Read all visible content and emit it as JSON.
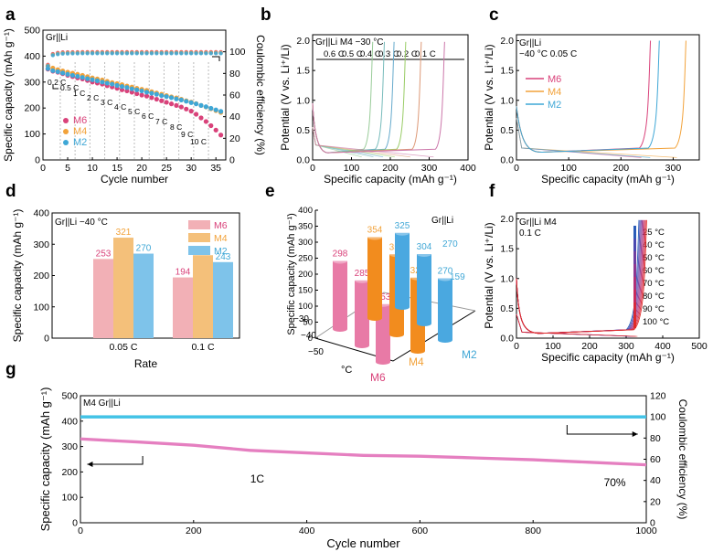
{
  "colors": {
    "M6": "#d9427a",
    "M4": "#f2a23a",
    "M2": "#3fa7d6",
    "pinkbar": "#f2b0b6",
    "orangebar": "#f4c07a",
    "bluebar": "#7ec3ea",
    "cyl_pink": "#e87aa6",
    "cyl_orange": "#f28c1e",
    "cyl_blue": "#4aa8e0",
    "long_ce": "#43c3e6",
    "long_cap": "#e57fc0"
  },
  "chart_data": [
    {
      "panel": "a",
      "type": "scatter",
      "title": "Gr||Li",
      "xlabel": "Cycle number",
      "ylabel": "Specific capacity (mAh g⁻¹)",
      "y2label": "Coulombic efficiency (%)",
      "xlim": [
        0,
        37
      ],
      "ylim": [
        0,
        500
      ],
      "y2lim": [
        0,
        120
      ],
      "xticks": [
        "0",
        "5",
        "10",
        "15",
        "20",
        "25",
        "30",
        "35"
      ],
      "yticks": [
        "0",
        "100",
        "200",
        "300",
        "400",
        "500"
      ],
      "y2ticks": [
        "0",
        "20",
        "40",
        "60",
        "80",
        "100"
      ],
      "rate_labels": [
        "0.2 C",
        "0.5 C",
        "1 C",
        "2 C",
        "3 C",
        "4 C",
        "5 C",
        "6 C",
        "7 C",
        "8 C",
        "9 C",
        "10 C"
      ],
      "series": [
        {
          "name": "M6",
          "values": [
            350,
            342,
            338,
            332,
            326,
            321,
            316,
            312,
            306,
            300,
            296,
            292,
            286,
            281,
            276,
            270,
            266,
            261,
            255,
            250,
            246,
            240,
            234,
            228,
            222,
            216,
            210,
            204,
            196,
            188,
            176,
            162,
            148,
            132,
            115,
            96
          ]
        },
        {
          "name": "M4",
          "values": [
            362,
            354,
            348,
            343,
            338,
            334,
            330,
            326,
            321,
            316,
            312,
            308,
            303,
            298,
            294,
            290,
            285,
            281,
            276,
            272,
            268,
            263,
            258,
            253,
            248,
            243,
            239,
            234,
            228,
            223,
            217,
            210,
            204,
            197,
            190,
            183
          ]
        },
        {
          "name": "M2",
          "values": [
            352,
            344,
            340,
            335,
            330,
            326,
            322,
            318,
            313,
            309,
            305,
            300,
            296,
            292,
            287,
            283,
            279,
            274,
            270,
            266,
            261,
            257,
            253,
            248,
            244,
            240,
            235,
            231,
            226,
            221,
            216,
            210,
            205,
            199,
            193,
            187
          ]
        }
      ],
      "ce": [
        88,
        98,
        99,
        99.5,
        99.6,
        99.7,
        99.7,
        99.8,
        99.8,
        99.8,
        99.8,
        99.8,
        99.8,
        99.8,
        99.8,
        99.8,
        99.8,
        99.8,
        99.8,
        99.8,
        99.8,
        99.8,
        99.8,
        99.8,
        99.8,
        99.8,
        99.8,
        99.8,
        99.8,
        99.8,
        99.8,
        99.8,
        99.8,
        99.8,
        99.8,
        99.8
      ]
    },
    {
      "panel": "b",
      "type": "line",
      "title": "Gr||Li  M4 −30 °C",
      "xlabel": "Specific capacity (mAh g⁻¹)",
      "ylabel": "Potential (V vs. Li⁺/Li)",
      "xlim": [
        0,
        400
      ],
      "ylim": [
        0,
        2.1
      ],
      "xticks": [
        "0",
        "100",
        "200",
        "300",
        "400"
      ],
      "yticks": [
        "0.0",
        "0.5",
        "1.0",
        "1.5",
        "2.0"
      ],
      "rate_labels": [
        "0.6 C",
        "0.5 C",
        "0.4 C",
        "0.3 C",
        "0.2 C",
        "0.1 C"
      ],
      "series": [
        {
          "name": "0.6 C",
          "x": 150
        },
        {
          "name": "0.5 C",
          "x": 180
        },
        {
          "name": "0.4 C",
          "x": 205
        },
        {
          "name": "0.3 C",
          "x": 235
        },
        {
          "name": "0.2 C",
          "x": 275
        },
        {
          "name": "0.1 C",
          "x": 335
        }
      ]
    },
    {
      "panel": "c",
      "type": "line",
      "title": "Gr||Li",
      "subtitle": "−40 °C 0.05 C",
      "xlabel": "Specific capacity (mAh g⁻¹)",
      "ylabel": "Potential (V vs. Li⁺/Li)",
      "xlim": [
        0,
        350
      ],
      "ylim": [
        0,
        2.1
      ],
      "xticks": [
        "0",
        "100",
        "200",
        "300"
      ],
      "yticks": [
        "0.0",
        "0.5",
        "1.0",
        "1.5",
        "2.0"
      ],
      "series": [
        {
          "name": "M6",
          "x": 253
        },
        {
          "name": "M4",
          "x": 321
        },
        {
          "name": "M2",
          "x": 270
        }
      ]
    },
    {
      "panel": "d",
      "type": "bar",
      "title": "Gr||Li −40 °C",
      "xlabel": "Rate",
      "ylabel": "Specific capacity (mAh g⁻¹)",
      "ylim": [
        0,
        400
      ],
      "yticks": [
        "0",
        "100",
        "200",
        "300",
        "400"
      ],
      "categories": [
        "0.05 C",
        "0.1 C"
      ],
      "series": [
        {
          "name": "M6",
          "values": [
            253,
            194
          ]
        },
        {
          "name": "M4",
          "values": [
            321,
            265
          ]
        },
        {
          "name": "M2",
          "values": [
            270,
            243
          ]
        }
      ],
      "labels": [
        [
          "253",
          "321",
          "270"
        ],
        [
          "194",
          "265",
          "243"
        ]
      ]
    },
    {
      "panel": "e",
      "type": "bar",
      "title": "Gr||Li",
      "ylabel": "Specific capacity (mAh g⁻¹)",
      "zlabel": "°C",
      "yticks": [
        "0",
        "50",
        "100",
        "150",
        "200",
        "250",
        "300",
        "350",
        "400"
      ],
      "temps": [
        "−30",
        "−40",
        "−50"
      ],
      "groups": [
        "M6",
        "M4",
        "M2"
      ],
      "series": [
        {
          "name": "M6",
          "values": [
            298,
            285,
            253
          ]
        },
        {
          "name": "M4",
          "values": [
            354,
            351,
            321
          ]
        },
        {
          "name": "M2",
          "values": [
            325,
            304,
            270
          ]
        }
      ],
      "extra_labels": [
        "270",
        "159"
      ]
    },
    {
      "panel": "f",
      "type": "line",
      "title": "Gr||Li M4",
      "subtitle": "0.1 C",
      "xlabel": "Specific capacity (mAh g⁻¹)",
      "ylabel": "Potential (V vs. Li⁺/Li)",
      "xlim": [
        0,
        500
      ],
      "ylim": [
        0,
        2.1
      ],
      "xticks": [
        "0",
        "100",
        "200",
        "300",
        "400",
        "500"
      ],
      "yticks": [
        "0.0",
        "0.5",
        "1.0",
        "1.5",
        "2.0"
      ],
      "legend": [
        "25 °C",
        "40 °C",
        "50 °C",
        "60 °C",
        "70 °C",
        "80 °C",
        "90 °C",
        "100 °C"
      ]
    },
    {
      "panel": "g",
      "type": "scatter",
      "title": "M4 Gr||Li",
      "xlabel": "Cycle number",
      "ylabel": "Specific capacity (mAh g⁻¹)",
      "y2label": "Coulombic efficiency (%)",
      "xlim": [
        0,
        1000
      ],
      "ylim": [
        0,
        500
      ],
      "y2lim": [
        0,
        120
      ],
      "xticks": [
        "0",
        "200",
        "400",
        "600",
        "800",
        "1000"
      ],
      "yticks": [
        "0",
        "100",
        "200",
        "300",
        "400",
        "500"
      ],
      "y2ticks": [
        "0",
        "20",
        "40",
        "60",
        "80",
        "100",
        "120"
      ],
      "annotations": [
        "1C",
        "70%"
      ],
      "capacity": {
        "x": [
          0,
          100,
          200,
          300,
          400,
          500,
          600,
          700,
          800,
          900,
          1000
        ],
        "y": [
          330,
          318,
          305,
          285,
          275,
          265,
          262,
          255,
          248,
          238,
          228
        ]
      },
      "ce": {
        "x": [
          0,
          1000
        ],
        "y": [
          100,
          100
        ]
      }
    }
  ]
}
